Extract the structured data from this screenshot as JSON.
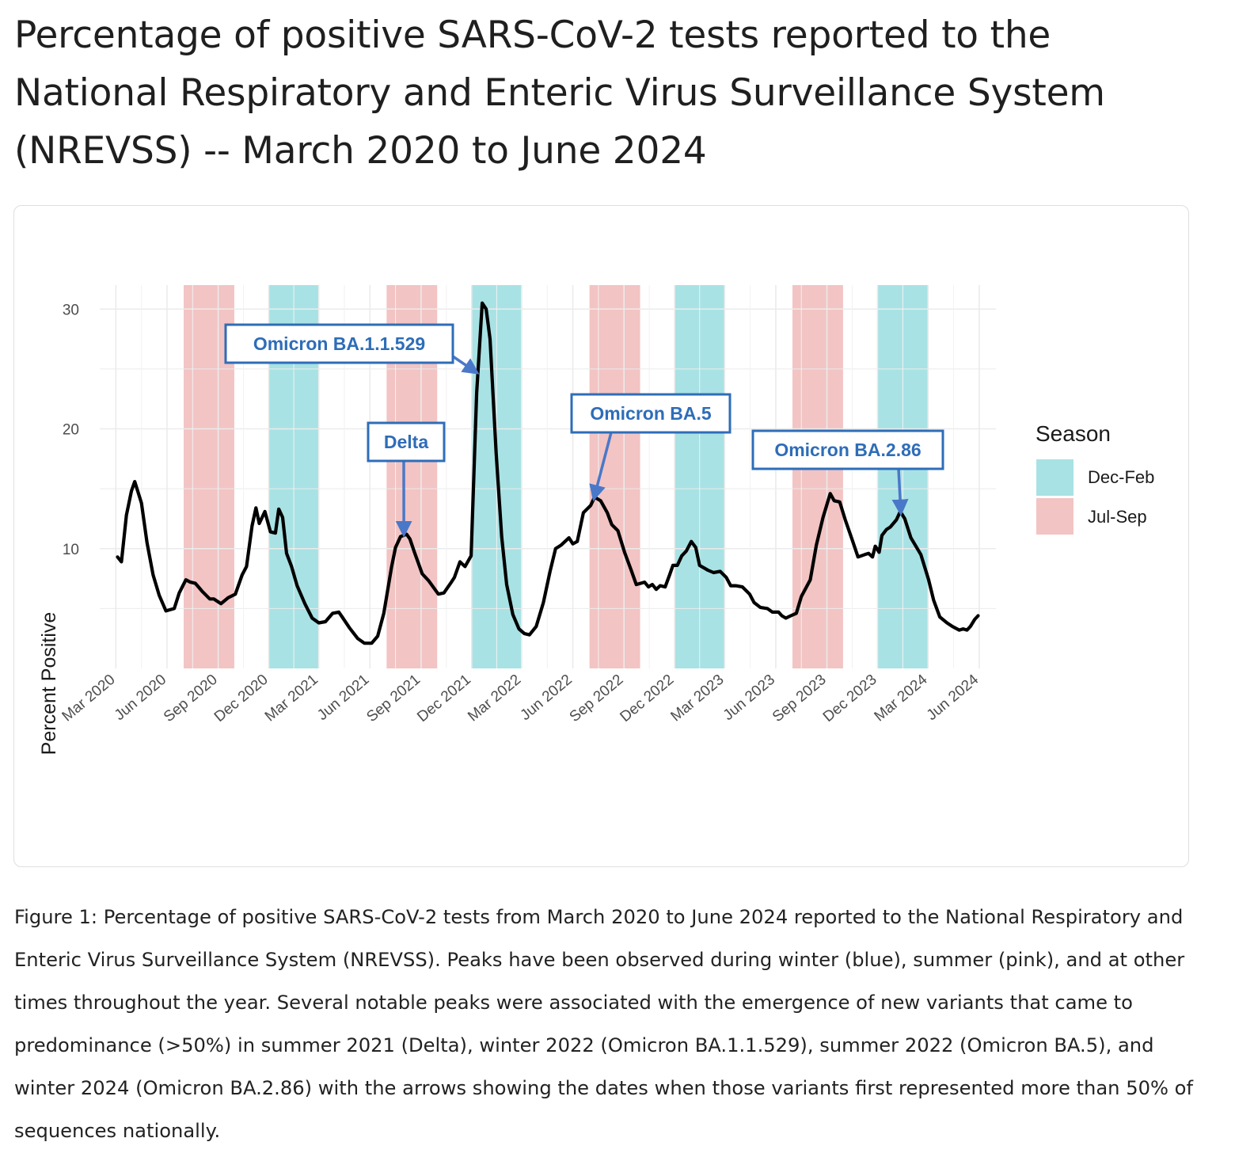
{
  "title": "Percentage of positive SARS-CoV-2 tests reported to the National Respiratory and Enteric Virus Surveillance System (NREVSS) -- March 2020 to June 2024",
  "caption": "Figure 1: Percentage of positive SARS-CoV-2 tests from March 2020 to June 2024 reported to the National Respiratory and Enteric Virus Surveillance System (NREVSS). Peaks have been observed during winter (blue), summer (pink), and at other times throughout the year. Several notable peaks were associated with the emergence of new variants that came to predominance (>50%) in summer 2021 (Delta), winter 2022 (Omicron BA.1.1.529), summer 2022 (Omicron BA.5), and winter 2024 (Omicron BA.2.86) with the arrows showing the dates when those variants first represented more than 50% of sequences nationally.",
  "colors": {
    "dec_feb": "#a8e2e4",
    "jul_sep": "#f2c4c3",
    "line": "#000000",
    "annotation": "#2e6db8",
    "arrow": "#4a78c8"
  },
  "chart_data": {
    "type": "line",
    "xlabel": "",
    "ylabel": "Percent Positive",
    "xlim": [
      "2020-02-01",
      "2024-07-01"
    ],
    "ylim": [
      0,
      32
    ],
    "y_ticks": [
      10,
      20,
      30
    ],
    "x_ticks": [
      {
        "date": "2020-03-01",
        "label": "Mar 2020"
      },
      {
        "date": "2020-06-01",
        "label": "Jun 2020"
      },
      {
        "date": "2020-09-01",
        "label": "Sep 2020"
      },
      {
        "date": "2020-12-01",
        "label": "Dec 2020"
      },
      {
        "date": "2021-03-01",
        "label": "Mar 2021"
      },
      {
        "date": "2021-06-01",
        "label": "Jun 2021"
      },
      {
        "date": "2021-09-01",
        "label": "Sep 2021"
      },
      {
        "date": "2021-12-01",
        "label": "Dec 2021"
      },
      {
        "date": "2022-03-01",
        "label": "Mar 2022"
      },
      {
        "date": "2022-06-01",
        "label": "Jun 2022"
      },
      {
        "date": "2022-09-01",
        "label": "Sep 2022"
      },
      {
        "date": "2022-12-01",
        "label": "Dec 2022"
      },
      {
        "date": "2023-03-01",
        "label": "Mar 2023"
      },
      {
        "date": "2023-06-01",
        "label": "Jun 2023"
      },
      {
        "date": "2023-09-01",
        "label": "Sep 2023"
      },
      {
        "date": "2023-12-01",
        "label": "Dec 2023"
      },
      {
        "date": "2024-03-01",
        "label": "Mar 2024"
      },
      {
        "date": "2024-06-01",
        "label": "Jun 2024"
      }
    ],
    "grid": true,
    "legend": {
      "title": "Season",
      "placement": "right",
      "entries": [
        {
          "label": "Dec-Feb",
          "color": "#a8e2e4"
        },
        {
          "label": "Jul-Sep",
          "color": "#f2c4c3"
        }
      ]
    },
    "seasons": [
      {
        "season": "Jul-Sep",
        "start": "2020-07-01",
        "end": "2020-09-30"
      },
      {
        "season": "Dec-Feb",
        "start": "2020-12-01",
        "end": "2021-02-28"
      },
      {
        "season": "Jul-Sep",
        "start": "2021-07-01",
        "end": "2021-09-30"
      },
      {
        "season": "Dec-Feb",
        "start": "2021-12-01",
        "end": "2022-02-28"
      },
      {
        "season": "Jul-Sep",
        "start": "2022-07-01",
        "end": "2022-09-30"
      },
      {
        "season": "Dec-Feb",
        "start": "2022-12-01",
        "end": "2023-02-28"
      },
      {
        "season": "Jul-Sep",
        "start": "2023-07-01",
        "end": "2023-09-30"
      },
      {
        "season": "Dec-Feb",
        "start": "2023-12-01",
        "end": "2024-02-29"
      }
    ],
    "series": [
      {
        "points": [
          [
            "2020-03-04",
            9.3
          ],
          [
            "2020-03-11",
            8.9
          ],
          [
            "2020-03-20",
            12.8
          ],
          [
            "2020-03-29",
            14.8
          ],
          [
            "2020-04-04",
            15.6
          ],
          [
            "2020-04-16",
            13.8
          ],
          [
            "2020-04-26",
            10.5
          ],
          [
            "2020-05-07",
            7.8
          ],
          [
            "2020-05-18",
            6.1
          ],
          [
            "2020-05-30",
            4.8
          ],
          [
            "2020-06-14",
            5.0
          ],
          [
            "2020-06-23",
            6.3
          ],
          [
            "2020-07-05",
            7.4
          ],
          [
            "2020-07-13",
            7.2
          ],
          [
            "2020-07-22",
            7.1
          ],
          [
            "2020-08-04",
            6.4
          ],
          [
            "2020-08-17",
            5.8
          ],
          [
            "2020-08-24",
            5.8
          ],
          [
            "2020-09-06",
            5.4
          ],
          [
            "2020-09-19",
            5.9
          ],
          [
            "2020-10-02",
            6.2
          ],
          [
            "2020-10-14",
            7.8
          ],
          [
            "2020-10-22",
            8.5
          ],
          [
            "2020-11-01",
            11.9
          ],
          [
            "2020-11-08",
            13.4
          ],
          [
            "2020-11-14",
            12.1
          ],
          [
            "2020-11-24",
            13.1
          ],
          [
            "2020-12-04",
            11.4
          ],
          [
            "2020-12-13",
            11.3
          ],
          [
            "2020-12-19",
            13.3
          ],
          [
            "2020-12-26",
            12.6
          ],
          [
            "2021-01-02",
            9.6
          ],
          [
            "2021-01-11",
            8.5
          ],
          [
            "2021-01-21",
            6.9
          ],
          [
            "2021-02-04",
            5.4
          ],
          [
            "2021-02-17",
            4.2
          ],
          [
            "2021-03-01",
            3.8
          ],
          [
            "2021-03-13",
            3.9
          ],
          [
            "2021-03-26",
            4.6
          ],
          [
            "2021-04-06",
            4.7
          ],
          [
            "2021-04-12",
            4.3
          ],
          [
            "2021-04-25",
            3.4
          ],
          [
            "2021-05-10",
            2.5
          ],
          [
            "2021-05-22",
            2.1
          ],
          [
            "2021-06-04",
            2.1
          ],
          [
            "2021-06-15",
            2.7
          ],
          [
            "2021-06-26",
            4.6
          ],
          [
            "2021-07-10",
            8.5
          ],
          [
            "2021-07-17",
            10.1
          ],
          [
            "2021-07-26",
            11.0
          ],
          [
            "2021-08-06",
            11.2
          ],
          [
            "2021-08-12",
            10.8
          ],
          [
            "2021-08-20",
            9.7
          ],
          [
            "2021-09-03",
            7.9
          ],
          [
            "2021-09-15",
            7.3
          ],
          [
            "2021-10-02",
            6.2
          ],
          [
            "2021-10-12",
            6.3
          ],
          [
            "2021-10-24",
            7.1
          ],
          [
            "2021-10-31",
            7.6
          ],
          [
            "2021-11-10",
            8.9
          ],
          [
            "2021-11-19",
            8.5
          ],
          [
            "2021-11-30",
            9.4
          ],
          [
            "2021-12-10",
            23.0
          ],
          [
            "2021-12-20",
            30.5
          ],
          [
            "2021-12-27",
            30.0
          ],
          [
            "2022-01-03",
            27.5
          ],
          [
            "2022-01-14",
            18.0
          ],
          [
            "2022-01-24",
            11.0
          ],
          [
            "2022-02-02",
            7.0
          ],
          [
            "2022-02-13",
            4.5
          ],
          [
            "2022-02-24",
            3.3
          ],
          [
            "2022-03-06",
            2.9
          ],
          [
            "2022-03-15",
            2.8
          ],
          [
            "2022-03-27",
            3.5
          ],
          [
            "2022-04-09",
            5.5
          ],
          [
            "2022-04-21",
            8.1
          ],
          [
            "2022-05-01",
            10.0
          ],
          [
            "2022-05-11",
            10.3
          ],
          [
            "2022-05-25",
            10.9
          ],
          [
            "2022-06-01",
            10.4
          ],
          [
            "2022-06-09",
            10.6
          ],
          [
            "2022-06-20",
            13.0
          ],
          [
            "2022-07-03",
            13.6
          ],
          [
            "2022-07-10",
            14.3
          ],
          [
            "2022-07-21",
            14.0
          ],
          [
            "2022-08-02",
            13.0
          ],
          [
            "2022-08-10",
            12.0
          ],
          [
            "2022-08-21",
            11.5
          ],
          [
            "2022-09-02",
            9.7
          ],
          [
            "2022-09-14",
            8.2
          ],
          [
            "2022-09-23",
            7.0
          ],
          [
            "2022-10-08",
            7.2
          ],
          [
            "2022-10-15",
            6.8
          ],
          [
            "2022-10-22",
            7.0
          ],
          [
            "2022-10-29",
            6.6
          ],
          [
            "2022-11-05",
            6.9
          ],
          [
            "2022-11-14",
            6.8
          ],
          [
            "2022-11-22",
            7.8
          ],
          [
            "2022-11-28",
            8.6
          ],
          [
            "2022-12-06",
            8.6
          ],
          [
            "2022-12-14",
            9.4
          ],
          [
            "2022-12-22",
            9.8
          ],
          [
            "2022-12-31",
            10.6
          ],
          [
            "2023-01-08",
            10.1
          ],
          [
            "2023-01-15",
            8.6
          ],
          [
            "2023-01-30",
            8.2
          ],
          [
            "2023-02-09",
            8.0
          ],
          [
            "2023-02-21",
            8.1
          ],
          [
            "2023-03-04",
            7.6
          ],
          [
            "2023-03-12",
            6.9
          ],
          [
            "2023-03-21",
            6.9
          ],
          [
            "2023-04-02",
            6.8
          ],
          [
            "2023-04-15",
            6.2
          ],
          [
            "2023-04-23",
            5.5
          ],
          [
            "2023-05-04",
            5.1
          ],
          [
            "2023-05-17",
            5.0
          ],
          [
            "2023-05-26",
            4.7
          ],
          [
            "2023-06-06",
            4.7
          ],
          [
            "2023-06-12",
            4.4
          ],
          [
            "2023-06-19",
            4.2
          ],
          [
            "2023-06-28",
            4.4
          ],
          [
            "2023-07-08",
            4.6
          ],
          [
            "2023-07-17",
            6.0
          ],
          [
            "2023-08-02",
            7.4
          ],
          [
            "2023-08-13",
            10.3
          ],
          [
            "2023-08-25",
            12.6
          ],
          [
            "2023-09-07",
            14.6
          ],
          [
            "2023-09-14",
            14.0
          ],
          [
            "2023-09-24",
            13.9
          ],
          [
            "2023-10-04",
            12.4
          ],
          [
            "2023-10-16",
            10.8
          ],
          [
            "2023-10-27",
            9.3
          ],
          [
            "2023-11-08",
            9.5
          ],
          [
            "2023-11-15",
            9.6
          ],
          [
            "2023-11-22",
            9.3
          ],
          [
            "2023-11-27",
            10.2
          ],
          [
            "2023-12-04",
            9.7
          ],
          [
            "2023-12-09",
            11.1
          ],
          [
            "2023-12-17",
            11.6
          ],
          [
            "2023-12-24",
            11.8
          ],
          [
            "2024-01-04",
            12.4
          ],
          [
            "2024-01-11",
            13.1
          ],
          [
            "2024-01-19",
            12.5
          ],
          [
            "2024-01-30",
            10.9
          ],
          [
            "2024-02-17",
            9.5
          ],
          [
            "2024-03-02",
            7.4
          ],
          [
            "2024-03-11",
            5.7
          ],
          [
            "2024-03-22",
            4.3
          ],
          [
            "2024-04-04",
            3.8
          ],
          [
            "2024-04-14",
            3.5
          ],
          [
            "2024-04-26",
            3.2
          ],
          [
            "2024-05-03",
            3.3
          ],
          [
            "2024-05-10",
            3.2
          ],
          [
            "2024-05-16",
            3.5
          ],
          [
            "2024-05-24",
            4.1
          ],
          [
            "2024-05-30",
            4.4
          ]
        ]
      }
    ],
    "annotations": [
      {
        "label": "Delta",
        "arrow_date": "2021-08-01",
        "arrow_value": 11.2
      },
      {
        "label": "Omicron BA.1.1.529",
        "arrow_date": "2021-12-10",
        "arrow_value": 24.7
      },
      {
        "label": "Omicron BA.5",
        "arrow_date": "2022-07-09",
        "arrow_value": 14.2
      },
      {
        "label": "Omicron BA.2.86",
        "arrow_date": "2024-01-12",
        "arrow_value": 13.0
      }
    ]
  }
}
